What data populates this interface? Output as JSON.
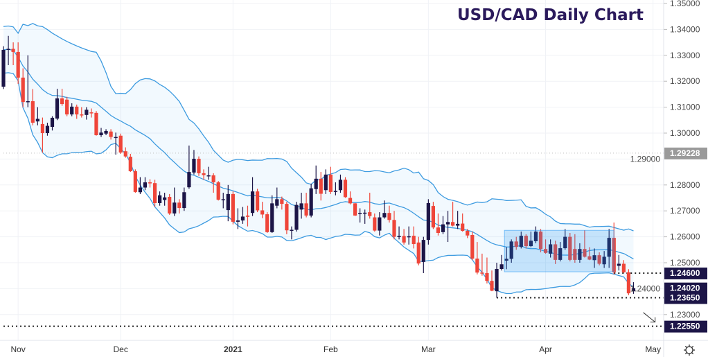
{
  "chart_data": {
    "type": "candlestick",
    "title": "USD/CAD Daily Chart",
    "colors": {
      "up": "#1c1547",
      "down": "#ef4539",
      "band": "#3d9be0",
      "title": "#2b1a5c",
      "label_bg": "#1c1547",
      "label_grey": "#9a9a9a"
    },
    "ylim": [
      1.2205,
      1.3513
    ],
    "y_ticks": [
      "1.35000",
      "1.34000",
      "1.33000",
      "1.32000",
      "1.31000",
      "1.30000",
      "1.29000",
      "1.28000",
      "1.27000",
      "1.26000",
      "1.25000",
      "1.24000",
      "1.23000"
    ],
    "x_ticks": [
      {
        "label": "Nov",
        "candle": 3,
        "bold": false
      },
      {
        "label": "Dec",
        "candle": 24,
        "bold": false
      },
      {
        "label": "2021",
        "candle": 47,
        "bold": true
      },
      {
        "label": "Feb",
        "candle": 67,
        "bold": false
      },
      {
        "label": "Mar",
        "candle": 87,
        "bold": false
      },
      {
        "label": "Apr",
        "candle": 111,
        "bold": false
      },
      {
        "label": "May",
        "candle": 133,
        "bold": false
      }
    ],
    "grid": true,
    "candles_ohlc": [
      [
        1.3179,
        1.3335,
        1.317,
        1.3321
      ],
      [
        1.3321,
        1.3375,
        1.3262,
        1.3325
      ],
      [
        1.3325,
        1.335,
        1.3262,
        1.3313
      ],
      [
        1.3313,
        1.335,
        1.319,
        1.3214
      ],
      [
        1.3214,
        1.325,
        1.31,
        1.312
      ],
      [
        1.312,
        1.33,
        1.31,
        1.3123
      ],
      [
        1.3123,
        1.317,
        1.303,
        1.304
      ],
      [
        1.3045,
        1.31,
        1.303,
        1.3055
      ],
      [
        1.3035,
        1.306,
        1.2925,
        1.3
      ],
      [
        1.3,
        1.304,
        1.299,
        1.3028
      ],
      [
        1.3024,
        1.3065,
        1.301,
        1.3059
      ],
      [
        1.3056,
        1.3171,
        1.305,
        1.3134
      ],
      [
        1.3134,
        1.3171,
        1.3105,
        1.3112
      ],
      [
        1.3129,
        1.314,
        1.3065,
        1.3072
      ],
      [
        1.3072,
        1.3115,
        1.3065,
        1.3102
      ],
      [
        1.3102,
        1.311,
        1.3055,
        1.3072
      ],
      [
        1.3072,
        1.31,
        1.306,
        1.307
      ],
      [
        1.307,
        1.31,
        1.3052,
        1.309
      ],
      [
        1.308,
        1.3095,
        1.306,
        1.3078
      ],
      [
        1.3078,
        1.3085,
        1.299,
        1.2992
      ],
      [
        1.2992,
        1.302,
        1.2985,
        1.3002
      ],
      [
        1.2998,
        1.3015,
        1.2992,
        1.3008
      ],
      [
        1.3006,
        1.3015,
        1.2975,
        1.2985
      ],
      [
        1.2985,
        1.3002,
        1.2917,
        1.2985
      ],
      [
        1.299,
        1.2998,
        1.292,
        1.2925
      ],
      [
        1.293,
        1.2945,
        1.2905,
        1.291
      ],
      [
        1.2909,
        1.292,
        1.285,
        1.2853
      ],
      [
        1.2853,
        1.286,
        1.277,
        1.2773
      ],
      [
        1.2772,
        1.283,
        1.2765,
        1.279
      ],
      [
        1.279,
        1.283,
        1.278,
        1.281
      ],
      [
        1.281,
        1.2822,
        1.279,
        1.2808
      ],
      [
        1.2807,
        1.282,
        1.2715,
        1.273
      ],
      [
        1.273,
        1.2775,
        1.272,
        1.276
      ],
      [
        1.2742,
        1.277,
        1.272,
        1.2752
      ],
      [
        1.2754,
        1.2765,
        1.2685,
        1.269
      ],
      [
        1.269,
        1.279,
        1.268,
        1.2732
      ],
      [
        1.2732,
        1.2745,
        1.269,
        1.2711
      ],
      [
        1.2711,
        1.279,
        1.27,
        1.2772
      ],
      [
        1.2791,
        1.2952,
        1.2785,
        1.285
      ],
      [
        1.2848,
        1.2935,
        1.284,
        1.2901
      ],
      [
        1.2901,
        1.291,
        1.2835,
        1.2845
      ],
      [
        1.2845,
        1.286,
        1.282,
        1.2838
      ],
      [
        1.2835,
        1.287,
        1.282,
        1.2837
      ],
      [
        1.2837,
        1.2845,
        1.277,
        1.281
      ],
      [
        1.281,
        1.2815,
        1.274,
        1.2743
      ],
      [
        1.2745,
        1.277,
        1.271,
        1.2745
      ],
      [
        1.2703,
        1.28,
        1.266,
        1.2765
      ],
      [
        1.2765,
        1.2775,
        1.2648,
        1.2658
      ],
      [
        1.2658,
        1.271,
        1.263,
        1.2663
      ],
      [
        1.2663,
        1.2715,
        1.265,
        1.2678
      ],
      [
        1.2682,
        1.272,
        1.264,
        1.2677
      ],
      [
        1.2692,
        1.283,
        1.268,
        1.2775
      ],
      [
        1.2775,
        1.2785,
        1.2695,
        1.2702
      ],
      [
        1.2702,
        1.2735,
        1.2672,
        1.2686
      ],
      [
        1.2687,
        1.2695,
        1.2615,
        1.2618
      ],
      [
        1.2618,
        1.276,
        1.2615,
        1.2729
      ],
      [
        1.272,
        1.279,
        1.271,
        1.2745
      ],
      [
        1.2745,
        1.2755,
        1.2705,
        1.2727
      ],
      [
        1.2727,
        1.2735,
        1.261,
        1.2625
      ],
      [
        1.2627,
        1.264,
        1.259,
        1.2627
      ],
      [
        1.2627,
        1.2735,
        1.262,
        1.2723
      ],
      [
        1.2705,
        1.277,
        1.267,
        1.2729
      ],
      [
        1.2729,
        1.277,
        1.2675,
        1.2682
      ],
      [
        1.2682,
        1.2805,
        1.2675,
        1.2787
      ],
      [
        1.2784,
        1.2875,
        1.2765,
        1.2824
      ],
      [
        1.2824,
        1.285,
        1.274,
        1.2766
      ],
      [
        1.278,
        1.286,
        1.2765,
        1.284
      ],
      [
        1.284,
        1.287,
        1.2765,
        1.2773
      ],
      [
        1.2777,
        1.281,
        1.276,
        1.2777
      ],
      [
        1.278,
        1.284,
        1.277,
        1.282
      ],
      [
        1.282,
        1.283,
        1.275,
        1.2753
      ],
      [
        1.275,
        1.2775,
        1.2725,
        1.2729
      ],
      [
        1.2729,
        1.273,
        1.268,
        1.2682
      ],
      [
        1.2692,
        1.271,
        1.2655,
        1.2692
      ],
      [
        1.2693,
        1.2705,
        1.265,
        1.2693
      ],
      [
        1.2695,
        1.277,
        1.267,
        1.268
      ],
      [
        1.2675,
        1.269,
        1.262,
        1.2624
      ],
      [
        1.2624,
        1.2695,
        1.2605,
        1.2675
      ],
      [
        1.2675,
        1.274,
        1.267,
        1.2692
      ],
      [
        1.2692,
        1.272,
        1.2655,
        1.2665
      ],
      [
        1.2665,
        1.27,
        1.259,
        1.26
      ],
      [
        1.2603,
        1.264,
        1.259,
        1.2603
      ],
      [
        1.2603,
        1.263,
        1.257,
        1.2578
      ],
      [
        1.2598,
        1.264,
        1.257,
        1.2602
      ],
      [
        1.2604,
        1.264,
        1.2555,
        1.2572
      ],
      [
        1.2578,
        1.26,
        1.249,
        1.2497
      ],
      [
        1.2503,
        1.26,
        1.246,
        1.2588
      ],
      [
        1.2588,
        1.2745,
        1.257,
        1.273
      ],
      [
        1.2719,
        1.2735,
        1.263,
        1.2636
      ],
      [
        1.2636,
        1.269,
        1.2605,
        1.2615
      ],
      [
        1.2618,
        1.268,
        1.261,
        1.2648
      ],
      [
        1.2648,
        1.27,
        1.258,
        1.2657
      ],
      [
        1.2657,
        1.2735,
        1.264,
        1.2643
      ],
      [
        1.2643,
        1.27,
        1.263,
        1.265
      ],
      [
        1.2651,
        1.269,
        1.262,
        1.2623
      ],
      [
        1.2623,
        1.263,
        1.2595,
        1.2605
      ],
      [
        1.2607,
        1.262,
        1.251,
        1.2516
      ],
      [
        1.2516,
        1.258,
        1.2455,
        1.2462
      ],
      [
        1.2462,
        1.2535,
        1.245,
        1.246
      ],
      [
        1.246,
        1.252,
        1.242,
        1.243
      ],
      [
        1.243,
        1.247,
        1.239,
        1.2392
      ],
      [
        1.239,
        1.25,
        1.2365,
        1.2476
      ],
      [
        1.2476,
        1.253,
        1.247,
        1.2494
      ],
      [
        1.2508,
        1.256,
        1.2475,
        1.2515
      ],
      [
        1.2515,
        1.259,
        1.25,
        1.2582
      ],
      [
        1.2582,
        1.26,
        1.255,
        1.2561
      ],
      [
        1.2561,
        1.262,
        1.2555,
        1.2604
      ],
      [
        1.2604,
        1.261,
        1.2555,
        1.2564
      ],
      [
        1.2564,
        1.262,
        1.256,
        1.2585
      ],
      [
        1.2583,
        1.264,
        1.2575,
        1.262
      ],
      [
        1.262,
        1.263,
        1.254,
        1.2553
      ],
      [
        1.2553,
        1.259,
        1.2535,
        1.2538
      ],
      [
        1.2535,
        1.259,
        1.252,
        1.2571
      ],
      [
        1.2571,
        1.2585,
        1.2495,
        1.2511
      ],
      [
        1.2511,
        1.258,
        1.2505,
        1.2556
      ],
      [
        1.2556,
        1.263,
        1.255,
        1.26
      ],
      [
        1.26,
        1.2615,
        1.2505,
        1.2511
      ],
      [
        1.2553,
        1.261,
        1.25,
        1.2511
      ],
      [
        1.2511,
        1.2575,
        1.25,
        1.2553
      ],
      [
        1.2553,
        1.2625,
        1.252,
        1.2523
      ],
      [
        1.2525,
        1.256,
        1.251,
        1.2512
      ],
      [
        1.251,
        1.2555,
        1.248,
        1.2529
      ],
      [
        1.2529,
        1.254,
        1.249,
        1.2496
      ],
      [
        1.2494,
        1.2545,
        1.248,
        1.2523
      ],
      [
        1.2523,
        1.263,
        1.248,
        1.2596
      ],
      [
        1.2596,
        1.2655,
        1.2455,
        1.2463
      ],
      [
        1.2488,
        1.253,
        1.247,
        1.2496
      ],
      [
        1.2496,
        1.251,
        1.246,
        1.2463
      ],
      [
        1.2463,
        1.2475,
        1.2375,
        1.2382
      ],
      [
        1.239,
        1.2425,
        1.238,
        1.2402
      ]
    ],
    "range_box": {
      "from_candle": 103,
      "to_candle": 125,
      "top": 1.2625,
      "bottom": 1.2465
    },
    "levels": [
      {
        "label": "1.29228",
        "value": 1.29228,
        "from_candle": 0,
        "style": "grey"
      },
      {
        "label": "1.24600",
        "value": 1.246,
        "from_candle": 125,
        "style": "dark"
      },
      {
        "label": "1.23650",
        "value": 1.2365,
        "from_candle": 101,
        "style": "dark"
      },
      {
        "label": "1.22550",
        "value": 1.2255,
        "from_candle": 0,
        "style": "dark"
      }
    ],
    "last_price": {
      "label": "1.24020",
      "value": 1.2402
    },
    "projection_arrow": {
      "from_candle": 131,
      "from": 1.23,
      "to_candle": 133,
      "to": 1.2255
    }
  },
  "toolbar": {
    "settings_icon": "gear-icon"
  }
}
